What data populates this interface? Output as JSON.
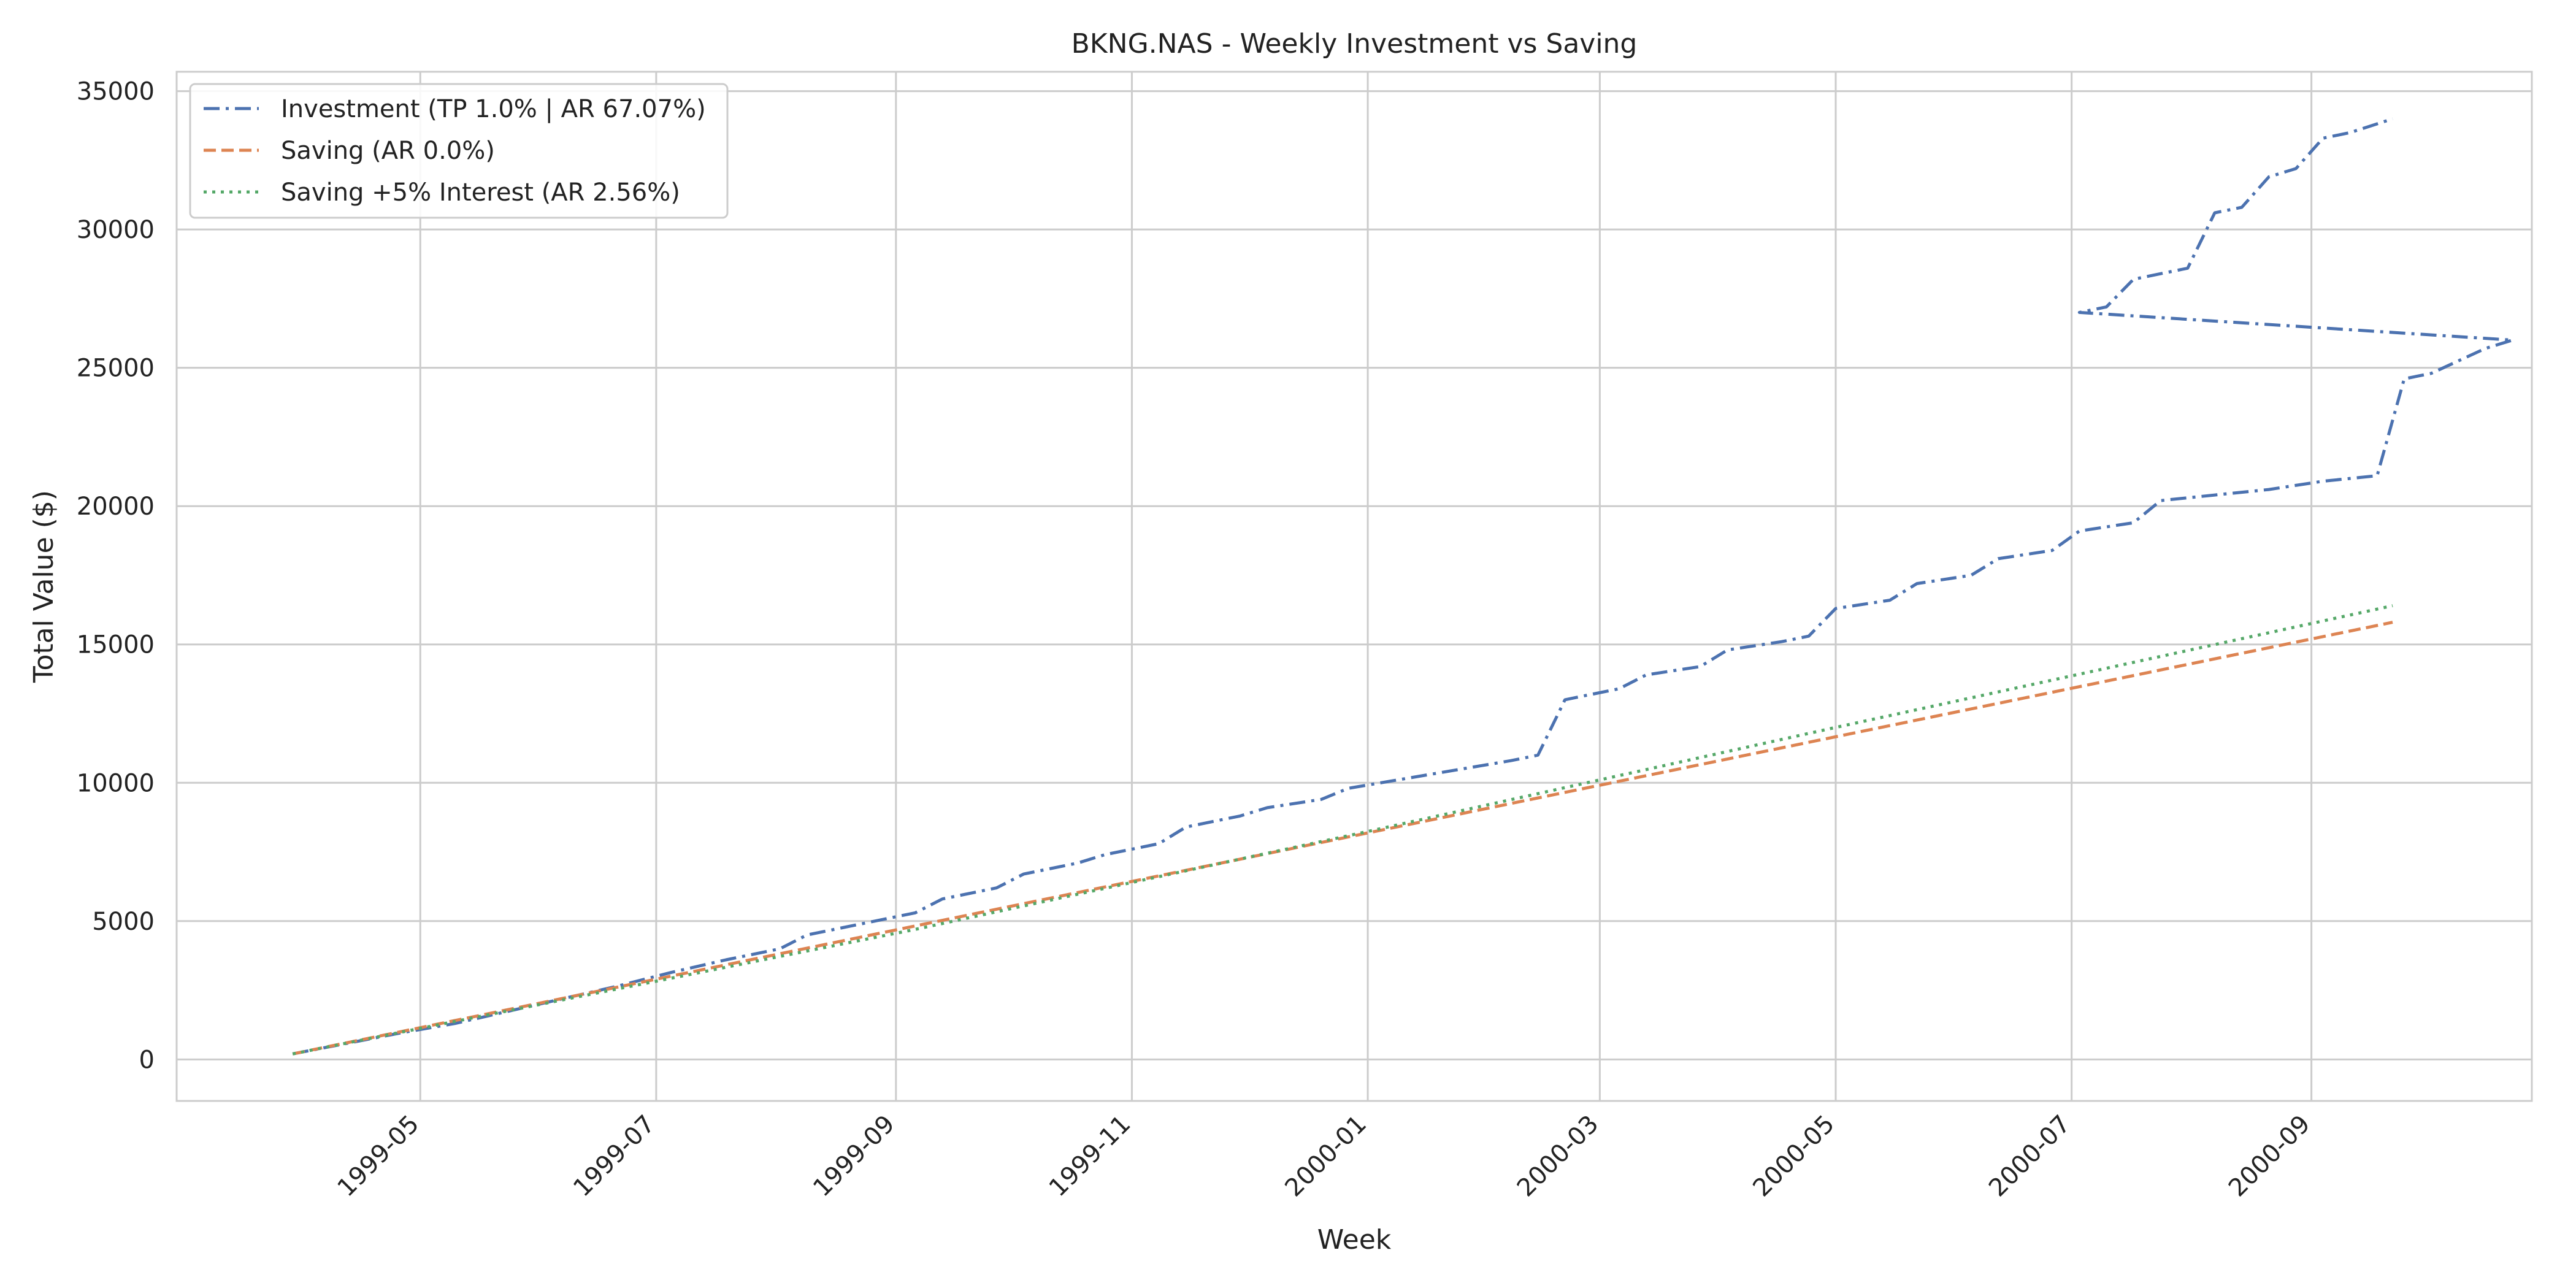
{
  "chart_data": {
    "type": "line",
    "title": "BKNG.NAS - Weekly Investment vs Saving",
    "xlabel": "Week",
    "ylabel": "Total Value ($)",
    "x_range": [
      "1999-02-27",
      "2000-10-28"
    ],
    "ylim": [
      -1500,
      35700
    ],
    "x_ticks": [
      "1999-05",
      "1999-07",
      "1999-09",
      "1999-11",
      "2000-01",
      "2000-03",
      "2000-05",
      "2000-07",
      "2000-09"
    ],
    "y_ticks": [
      0,
      5000,
      10000,
      15000,
      20000,
      25000,
      30000,
      35000
    ],
    "grid": true,
    "legend_position": "top-left",
    "series": [
      {
        "name": "Investment (TP 1.0% | AR 67.07%)",
        "color": "#4c72b0",
        "style": "dashdot",
        "points": [
          [
            "1999-03-29",
            200
          ],
          [
            "1999-04-12",
            580
          ],
          [
            "1999-04-26",
            960
          ],
          [
            "1999-05-10",
            1300
          ],
          [
            "1999-05-24",
            1750
          ],
          [
            "1999-06-07",
            2200
          ],
          [
            "1999-06-21",
            2650
          ],
          [
            "1999-07-05",
            3150
          ],
          [
            "1999-07-19",
            3600
          ],
          [
            "1999-08-02",
            4000
          ],
          [
            "1999-08-09",
            4500
          ],
          [
            "1999-08-23",
            4900
          ],
          [
            "1999-09-06",
            5300
          ],
          [
            "1999-09-13",
            5800
          ],
          [
            "1999-09-27",
            6200
          ],
          [
            "1999-10-04",
            6700
          ],
          [
            "1999-10-18",
            7100
          ],
          [
            "1999-10-25",
            7400
          ],
          [
            "1999-11-08",
            7800
          ],
          [
            "1999-11-15",
            8400
          ],
          [
            "1999-11-29",
            8800
          ],
          [
            "1999-12-06",
            9100
          ],
          [
            "1999-12-20",
            9400
          ],
          [
            "1999-12-27",
            9800
          ],
          [
            "2000-01-17",
            10300
          ],
          [
            "2000-02-07",
            10800
          ],
          [
            "2000-02-14",
            11000
          ],
          [
            "2000-02-21",
            13000
          ],
          [
            "2000-03-06",
            13400
          ],
          [
            "2000-03-13",
            13900
          ],
          [
            "2000-03-27",
            14200
          ],
          [
            "2000-04-03",
            14800
          ],
          [
            "2000-04-17",
            15100
          ],
          [
            "2000-04-24",
            15300
          ],
          [
            "2000-05-01",
            16300
          ],
          [
            "2000-05-15",
            16600
          ],
          [
            "2000-05-22",
            17200
          ],
          [
            "2000-06-05",
            17500
          ],
          [
            "2000-06-12",
            18100
          ],
          [
            "2000-06-26",
            18400
          ],
          [
            "2000-07-03",
            19100
          ],
          [
            "2000-07-17",
            19400
          ],
          [
            "2000-07-24",
            20200
          ],
          [
            "2000-08-07",
            20400
          ],
          [
            "2000-08-21",
            20600
          ],
          [
            "2000-09-04",
            20900
          ],
          [
            "2000-09-18",
            21100
          ],
          [
            "2000-09-25",
            24600
          ],
          [
            "2000-10-02",
            24800
          ],
          [
            "2000-10-16",
            25700
          ],
          [
            "2000-10-23",
            26000
          ],
          [
            "2000-07-03",
            27000
          ],
          [
            "2000-07-10",
            27200
          ],
          [
            "2000-07-17",
            28200
          ],
          [
            "2000-07-31",
            28600
          ],
          [
            "2000-08-07",
            30600
          ],
          [
            "2000-08-14",
            30800
          ],
          [
            "2000-08-21",
            31900
          ],
          [
            "2000-08-28",
            32200
          ],
          [
            "2000-09-04",
            33300
          ],
          [
            "2000-09-11",
            33500
          ],
          [
            "2000-09-22",
            34000
          ]
        ]
      },
      {
        "name": "Saving (AR 0.0%)",
        "color": "#dd8452",
        "style": "dashed",
        "points": [
          [
            "1999-03-29",
            200
          ],
          [
            "2000-09-22",
            15800
          ]
        ]
      },
      {
        "name": "Saving +5% Interest (AR 2.56%)",
        "color": "#55a868",
        "style": "dotted",
        "points": [
          [
            "1999-03-29",
            200
          ],
          [
            "1999-09-06",
            4700
          ],
          [
            "2000-01-03",
            8300
          ],
          [
            "2000-05-01",
            12000
          ],
          [
            "2000-09-22",
            16400
          ]
        ]
      }
    ]
  }
}
